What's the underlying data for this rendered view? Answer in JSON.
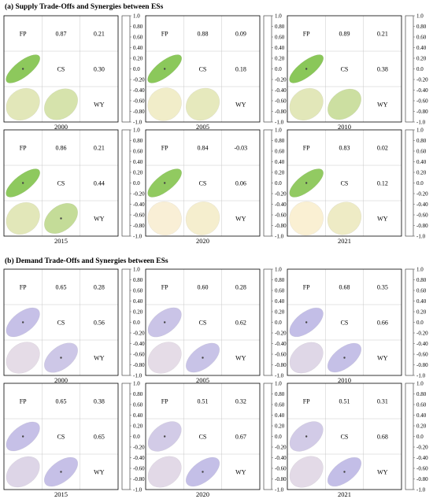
{
  "section_a_title": "(a) Supply Trade-Offs and Synergies between ESs",
  "section_b_title": "(b) Demand Trade-Offs and Synergies between ESs",
  "colors": {
    "supply_positive": "#7cc24a",
    "supply_neutral": "#fdf1d6",
    "supply_negative": "#6fa8d8",
    "demand_positive": "#a8a6e6",
    "demand_neutral": "#fdf1e8",
    "demand_negative": "#e8909a"
  },
  "chart_data": [
    {
      "type": "heatmap",
      "section": "supply",
      "title": "2000",
      "labels": [
        "FP",
        "CS",
        "WY"
      ],
      "values": {
        "FP_CS": 0.87,
        "FP_WY": 0.21,
        "CS_WY": 0.3
      },
      "display": {
        "FP_CS": "0.87",
        "FP_WY": "0.21",
        "CS_WY": "0.30"
      },
      "colorbar_ticks": [
        "1.0",
        "0.80",
        "0.60",
        "0.40",
        "0.20",
        "0.0",
        "-0.20",
        "-0.40",
        "-0.60",
        "-0.80",
        "-1.0"
      ],
      "vlim": [
        -1,
        1
      ]
    },
    {
      "type": "heatmap",
      "section": "supply",
      "title": "2005",
      "labels": [
        "FP",
        "CS",
        "WY"
      ],
      "values": {
        "FP_CS": 0.88,
        "FP_WY": 0.09,
        "CS_WY": 0.18
      },
      "display": {
        "FP_CS": "0.88",
        "FP_WY": "0.09",
        "CS_WY": "0.18"
      },
      "colorbar_ticks": [
        "1.0",
        "0.80",
        "0.60",
        "0.40",
        "0.20",
        "0.0",
        "-0.20",
        "-0.40",
        "-0.60",
        "-0.80",
        "-1.0"
      ],
      "vlim": [
        -1,
        1
      ]
    },
    {
      "type": "heatmap",
      "section": "supply",
      "title": "2010",
      "labels": [
        "FP",
        "CS",
        "WY"
      ],
      "values": {
        "FP_CS": 0.89,
        "FP_WY": 0.21,
        "CS_WY": 0.38
      },
      "display": {
        "FP_CS": "0.89",
        "FP_WY": "0.21",
        "CS_WY": "0.38"
      },
      "colorbar_ticks": [
        "1.0",
        "0.80",
        "0.60",
        "0.40",
        "0.20",
        "0.0",
        "-0.20",
        "-0.40",
        "-0.60",
        "-0.80",
        "-1.0"
      ],
      "vlim": [
        -1,
        1
      ]
    },
    {
      "type": "heatmap",
      "section": "supply",
      "title": "2015",
      "labels": [
        "FP",
        "CS",
        "WY"
      ],
      "values": {
        "FP_CS": 0.86,
        "FP_WY": 0.21,
        "CS_WY": 0.44
      },
      "display": {
        "FP_CS": "0.86",
        "FP_WY": "0.21",
        "CS_WY": "0.44"
      },
      "colorbar_ticks": [
        "1.0",
        "0.80",
        "0.60",
        "0.40",
        "0.20",
        "0.0",
        "-0.20",
        "-0.40",
        "-0.60",
        "-0.80",
        "-1.0"
      ],
      "vlim": [
        -1,
        1
      ]
    },
    {
      "type": "heatmap",
      "section": "supply",
      "title": "2020",
      "labels": [
        "FP",
        "CS",
        "WY"
      ],
      "values": {
        "FP_CS": 0.84,
        "FP_WY": -0.03,
        "CS_WY": 0.06
      },
      "display": {
        "FP_CS": "0.84",
        "FP_WY": "-0.03",
        "CS_WY": "0.06"
      },
      "colorbar_ticks": [
        "1.0",
        "0.80",
        "0.60",
        "0.40",
        "0.20",
        "0.0",
        "-0.20",
        "-0.40",
        "-0.60",
        "-0.80",
        "-1.0"
      ],
      "vlim": [
        -1,
        1
      ]
    },
    {
      "type": "heatmap",
      "section": "supply",
      "title": "2021",
      "labels": [
        "FP",
        "CS",
        "WY"
      ],
      "values": {
        "FP_CS": 0.83,
        "FP_WY": 0.02,
        "CS_WY": 0.12
      },
      "display": {
        "FP_CS": "0.83",
        "FP_WY": "0.02",
        "CS_WY": "0.12"
      },
      "colorbar_ticks": [
        "1.0",
        "0.80",
        "0.60",
        "0.40",
        "0.20",
        "0.0",
        "-0.20",
        "-0.40",
        "-0.60",
        "-0.80",
        "-1.0"
      ],
      "vlim": [
        -1,
        1
      ]
    },
    {
      "type": "heatmap",
      "section": "demand",
      "title": "2000",
      "labels": [
        "FP",
        "CS",
        "WY"
      ],
      "values": {
        "FP_CS": 0.65,
        "FP_WY": 0.28,
        "CS_WY": 0.56
      },
      "display": {
        "FP_CS": "0.65",
        "FP_WY": "0.28",
        "CS_WY": "0.56"
      },
      "colorbar_ticks": [
        "1.0",
        "0.80",
        "0.60",
        "0.40",
        "0.20",
        "0.0",
        "-0.20",
        "-0.40",
        "-0.60",
        "-0.80",
        "-1.0"
      ],
      "vlim": [
        -1,
        1
      ]
    },
    {
      "type": "heatmap",
      "section": "demand",
      "title": "2005",
      "labels": [
        "FP",
        "CS",
        "WY"
      ],
      "values": {
        "FP_CS": 0.6,
        "FP_WY": 0.28,
        "CS_WY": 0.62
      },
      "display": {
        "FP_CS": "0.60",
        "FP_WY": "0.28",
        "CS_WY": "0.62"
      },
      "colorbar_ticks": [
        "1.0",
        "0.80",
        "0.60",
        "0.40",
        "0.20",
        "0.0",
        "-0.20",
        "-0.40",
        "-0.60",
        "-0.80",
        "-1.0"
      ],
      "vlim": [
        -1,
        1
      ]
    },
    {
      "type": "heatmap",
      "section": "demand",
      "title": "2010",
      "labels": [
        "FP",
        "CS",
        "WY"
      ],
      "values": {
        "FP_CS": 0.68,
        "FP_WY": 0.35,
        "CS_WY": 0.66
      },
      "display": {
        "FP_CS": "0.68",
        "FP_WY": "0.35",
        "CS_WY": "0.66"
      },
      "colorbar_ticks": [
        "1.0",
        "0.80",
        "0.60",
        "0.40",
        "0.20",
        "0.0",
        "-0.20",
        "-0.40",
        "-0.60",
        "-0.80",
        "-1.0"
      ],
      "vlim": [
        -1,
        1
      ]
    },
    {
      "type": "heatmap",
      "section": "demand",
      "title": "2015",
      "labels": [
        "FP",
        "CS",
        "WY"
      ],
      "values": {
        "FP_CS": 0.65,
        "FP_WY": 0.38,
        "CS_WY": 0.65
      },
      "display": {
        "FP_CS": "0.65",
        "FP_WY": "0.38",
        "CS_WY": "0.65"
      },
      "colorbar_ticks": [
        "1.0",
        "0.80",
        "0.60",
        "0.40",
        "0.20",
        "0.0",
        "-0.20",
        "-0.40",
        "-0.60",
        "-0.80",
        "-1.0"
      ],
      "vlim": [
        -1,
        1
      ]
    },
    {
      "type": "heatmap",
      "section": "demand",
      "title": "2020",
      "labels": [
        "FP",
        "CS",
        "WY"
      ],
      "values": {
        "FP_CS": 0.51,
        "FP_WY": 0.32,
        "CS_WY": 0.67
      },
      "display": {
        "FP_CS": "0.51",
        "FP_WY": "0.32",
        "CS_WY": "0.67"
      },
      "colorbar_ticks": [
        "1.0",
        "0.80",
        "0.60",
        "0.40",
        "0.20",
        "0.0",
        "-0.20",
        "-0.40",
        "-0.60",
        "-0.80",
        "-1.0"
      ],
      "vlim": [
        -1,
        1
      ]
    },
    {
      "type": "heatmap",
      "section": "demand",
      "title": "2021",
      "labels": [
        "FP",
        "CS",
        "WY"
      ],
      "values": {
        "FP_CS": 0.51,
        "FP_WY": 0.31,
        "CS_WY": 0.68
      },
      "display": {
        "FP_CS": "0.51",
        "FP_WY": "0.31",
        "CS_WY": "0.68"
      },
      "colorbar_ticks": [
        "1.0",
        "0.80",
        "0.60",
        "0.40",
        "0.20",
        "0.0",
        "-0.20",
        "-0.40",
        "-0.60",
        "-0.80",
        "-1.0"
      ],
      "vlim": [
        -1,
        1
      ]
    }
  ]
}
